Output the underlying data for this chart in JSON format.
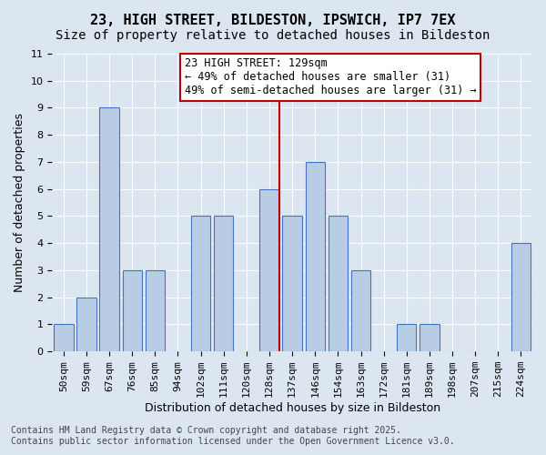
{
  "title": "23, HIGH STREET, BILDESTON, IPSWICH, IP7 7EX",
  "subtitle": "Size of property relative to detached houses in Bildeston",
  "xlabel": "Distribution of detached houses by size in Bildeston",
  "ylabel": "Number of detached properties",
  "categories": [
    "50sqm",
    "59sqm",
    "67sqm",
    "76sqm",
    "85sqm",
    "94sqm",
    "102sqm",
    "111sqm",
    "120sqm",
    "128sqm",
    "137sqm",
    "146sqm",
    "154sqm",
    "163sqm",
    "172sqm",
    "181sqm",
    "189sqm",
    "198sqm",
    "207sqm",
    "215sqm",
    "224sqm"
  ],
  "values": [
    1,
    2,
    9,
    3,
    3,
    0,
    5,
    5,
    0,
    6,
    5,
    7,
    5,
    3,
    0,
    1,
    1,
    0,
    0,
    0,
    4
  ],
  "bar_color": "#b8cce4",
  "bar_edge_color": "#4472c4",
  "background_color": "#dce6f1",
  "grid_color": "#ffffff",
  "vline_x": 9.425,
  "vline_color": "#c00000",
  "annotation_text": "23 HIGH STREET: 129sqm\n← 49% of detached houses are smaller (31)\n49% of semi-detached houses are larger (31) →",
  "annotation_box_color": "#ffffff",
  "annotation_box_edge_color": "#c00000",
  "ylim": [
    0,
    11
  ],
  "yticks": [
    0,
    1,
    2,
    3,
    4,
    5,
    6,
    7,
    8,
    9,
    10,
    11
  ],
  "footer": "Contains HM Land Registry data © Crown copyright and database right 2025.\nContains public sector information licensed under the Open Government Licence v3.0.",
  "title_fontsize": 11,
  "subtitle_fontsize": 10,
  "xlabel_fontsize": 9,
  "ylabel_fontsize": 9,
  "tick_fontsize": 8,
  "annotation_fontsize": 8.5,
  "footer_fontsize": 7
}
